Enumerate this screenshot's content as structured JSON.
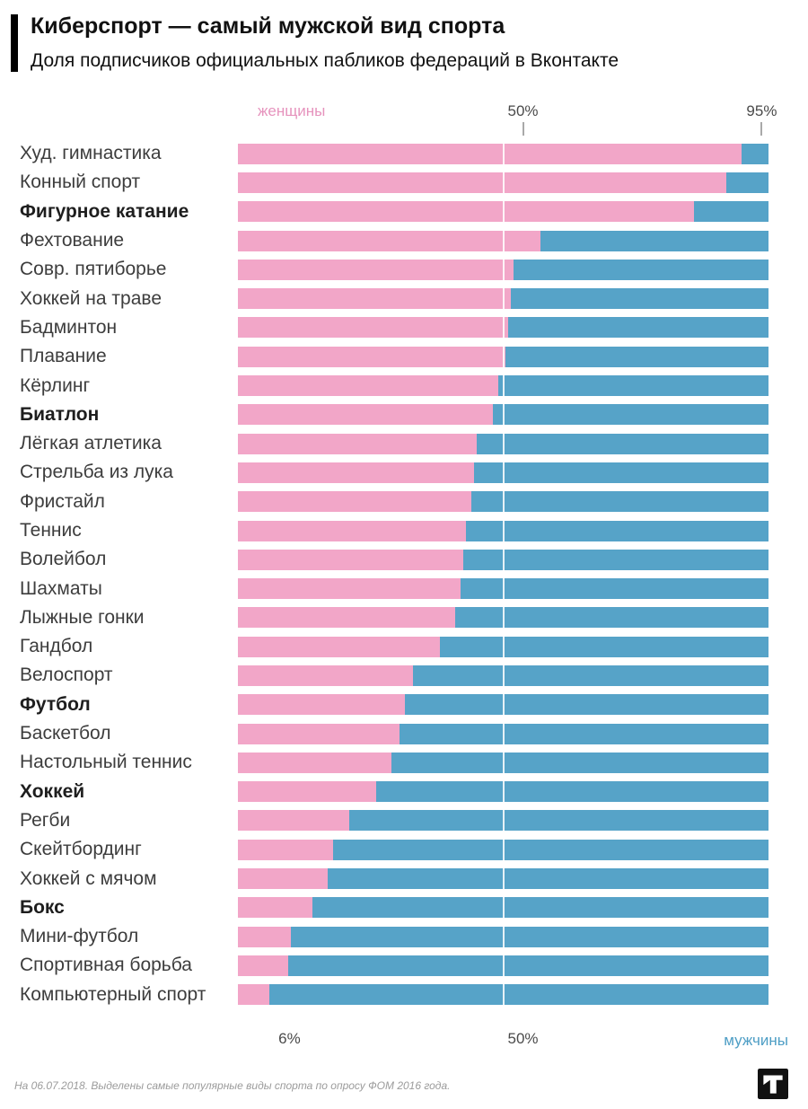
{
  "header": {
    "title": "Киберспорт — самый мужской вид спорта",
    "subtitle": "Доля подписчиков официальных пабликов федераций в Вконтакте"
  },
  "axes": {
    "top_left_label": "женщины",
    "bottom_right_label": "мужчины"
  },
  "colors": {
    "women": "#F2A6C8",
    "men": "#56A3C8",
    "women_label": "#E693BD",
    "men_label": "#4E9EC5",
    "tick_text": "#4A4A4A"
  },
  "footer": {
    "note": "На 06.07.2018. Выделены самые популярные виды спорта по опросу ФОМ 2016 года."
  },
  "chart_data": {
    "type": "bar",
    "orientation": "horizontal_stacked",
    "title": "Киберспорт — самый мужской вид спорта",
    "subtitle": "Доля подписчиков официальных пабликов федераций в Вконтакте",
    "xlim": [
      0,
      100
    ],
    "grid": "single vertical white line at 50%",
    "legend_position": "axis side labels (женщины left-top, мужчины right-bottom)",
    "categories": [
      "Худ. гимнастика",
      "Конный спорт",
      "Фигурное катание",
      "Фехтование",
      "Совр. пятиборье",
      "Хоккей на траве",
      "Бадминтон",
      "Плавание",
      "Кёрлинг",
      "Биатлон",
      "Лёгкая атлетика",
      "Стрельба из лука",
      "Фристайл",
      "Теннис",
      "Волейбол",
      "Шахматы",
      "Лыжные гонки",
      "Гандбол",
      "Велоспорт",
      "Футбол",
      "Баскетбол",
      "Настольный теннис",
      "Хоккей",
      "Регби",
      "Скейтбординг",
      "Хоккей с мячом",
      "Бокс",
      "Мини-футбол",
      "Спортивная борьба",
      "Компьютерный спорт"
    ],
    "highlighted_categories": [
      "Фигурное катание",
      "Биатлон",
      "Футбол",
      "Хоккей",
      "Бокс"
    ],
    "series": [
      {
        "name": "женщины",
        "color": "#F2A6C8",
        "values": [
          95,
          92,
          86,
          57,
          52,
          51.5,
          51,
          50.5,
          49,
          48,
          45,
          44.5,
          44,
          43,
          42.5,
          42,
          41,
          38,
          33,
          31.5,
          30.5,
          29,
          26,
          21,
          18,
          17,
          14,
          10,
          9.5,
          6
        ]
      },
      {
        "name": "мужчины",
        "color": "#56A3C8",
        "values": [
          5,
          8,
          14,
          43,
          48,
          48.5,
          49,
          49.5,
          51,
          52,
          55,
          55.5,
          56,
          57,
          57.5,
          58,
          59,
          62,
          67,
          68.5,
          69.5,
          71,
          74,
          79,
          82,
          83,
          86,
          90,
          90.5,
          94
        ]
      }
    ],
    "top_axis_ticks": [
      {
        "label": "50%",
        "value": 50
      },
      {
        "label": "95%",
        "value": 95
      }
    ],
    "bottom_axis_ticks": [
      {
        "label": "6%",
        "value": 6
      },
      {
        "label": "50%",
        "value": 50
      }
    ]
  }
}
